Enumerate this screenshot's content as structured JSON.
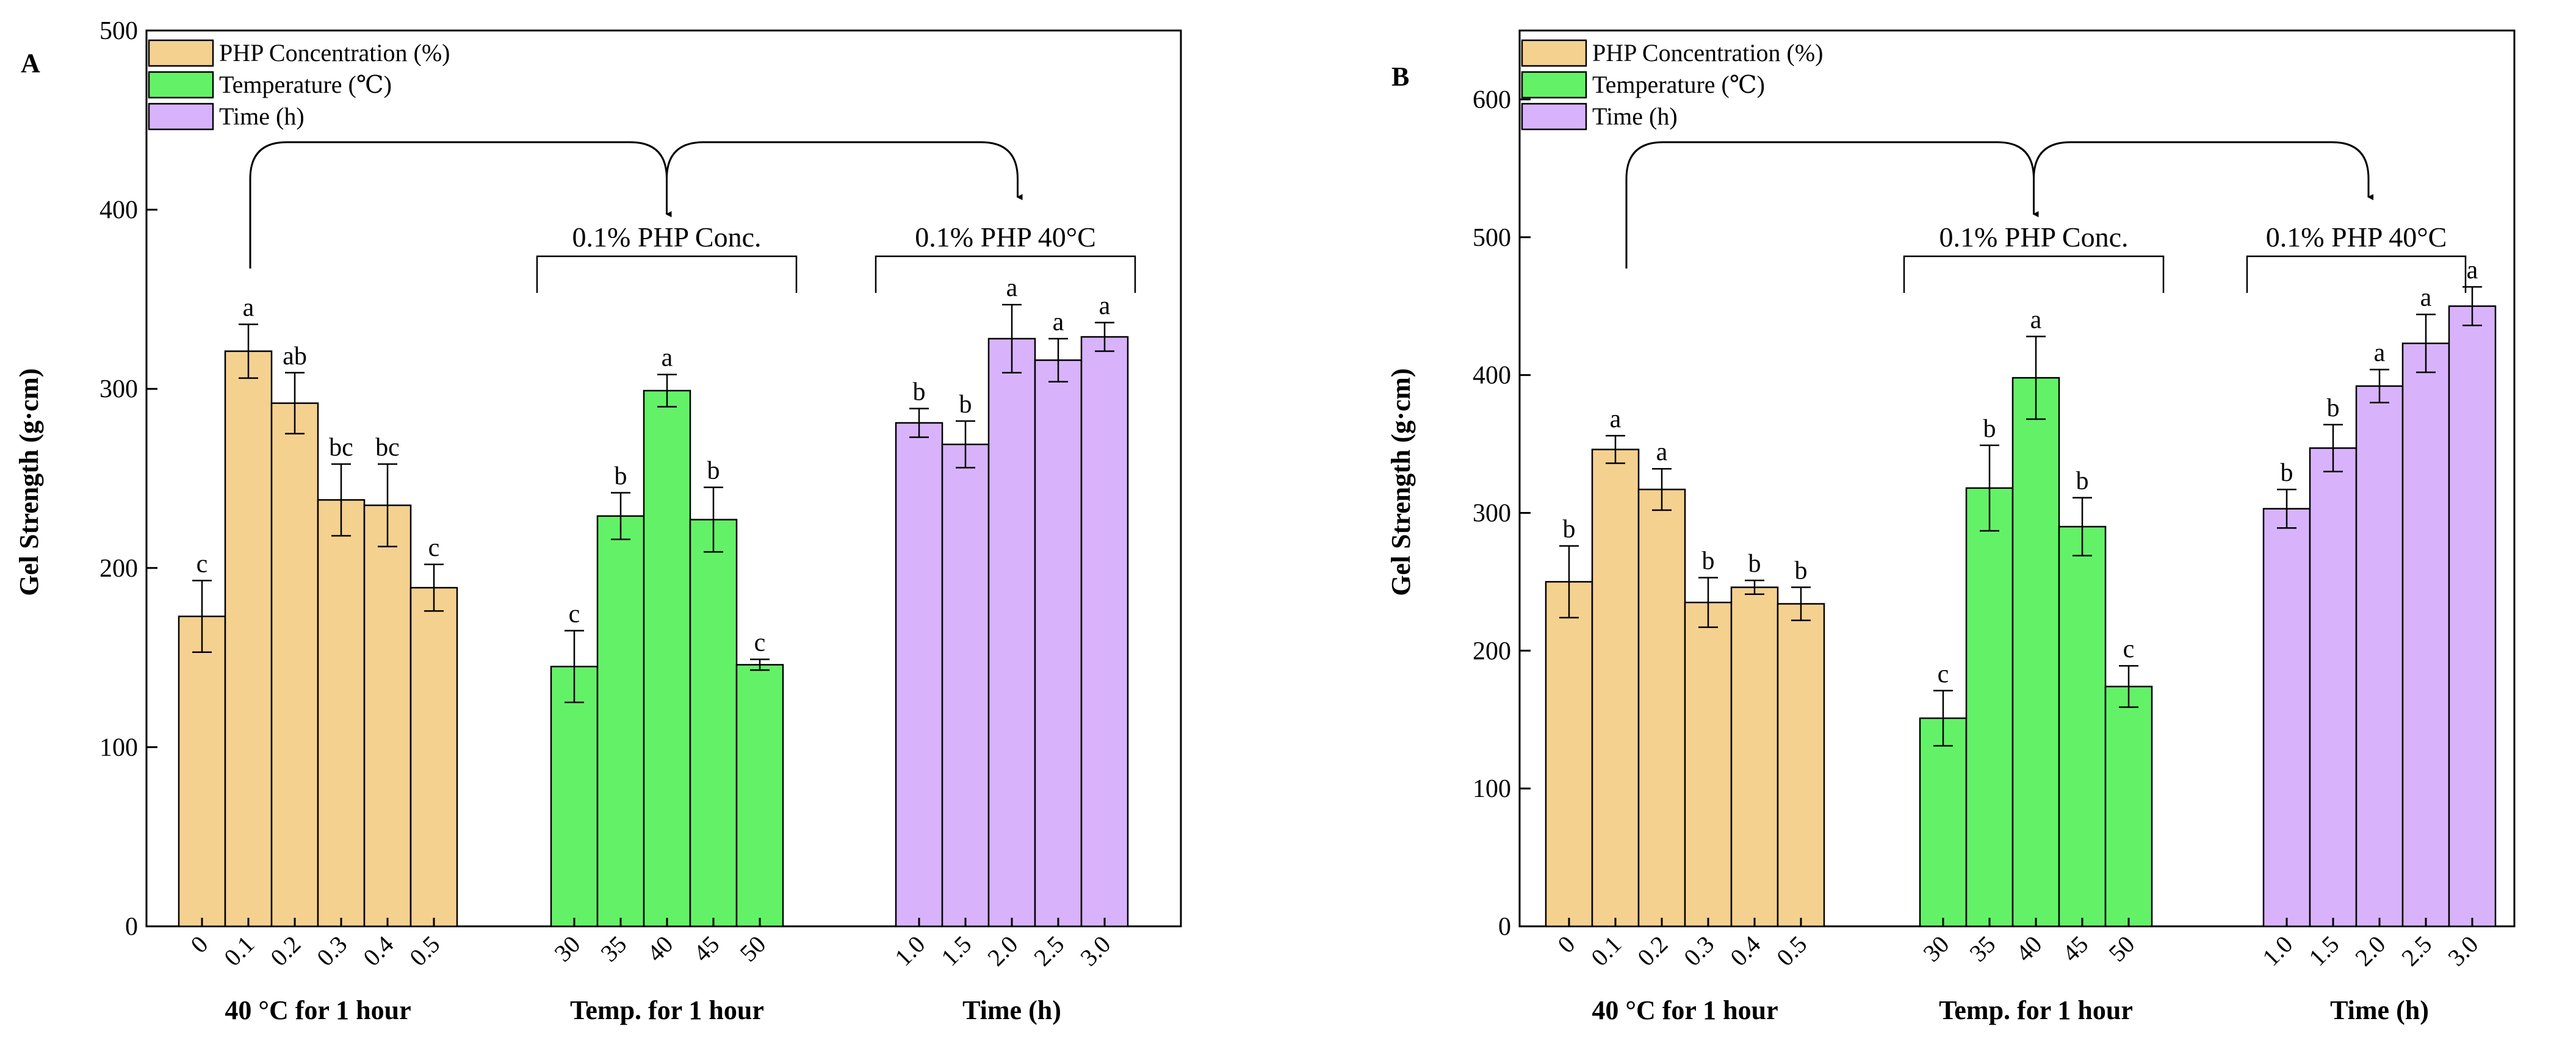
{
  "chart_data": [
    {
      "type": "bar",
      "panel_label": "A",
      "ylabel": "Gel Strength (g·cm)",
      "ylim": [
        0,
        500
      ],
      "yticks": [
        0,
        100,
        200,
        300,
        400,
        500
      ],
      "legend": [
        {
          "label": "PHP Concentration (%)",
          "color": "#f5d190"
        },
        {
          "label": "Temperature (℃)",
          "color": "#63f267"
        },
        {
          "label": "Time (h)",
          "color": "#d8b3fb"
        }
      ],
      "groups": [
        {
          "xlabel": "40 °C for 1 hour",
          "color": "#f5d190",
          "bracket_label": "",
          "categories": [
            "0",
            "0.1",
            "0.2",
            "0.3",
            "0.4",
            "0.5"
          ],
          "values": [
            173,
            321,
            292,
            238,
            235,
            189
          ],
          "errors": [
            20,
            15,
            17,
            20,
            23,
            13
          ],
          "letters": [
            "c",
            "a",
            "ab",
            "bc",
            "bc",
            "c"
          ]
        },
        {
          "xlabel": "Temp. for 1 hour",
          "color": "#63f267",
          "bracket_label": "0.1% PHP Conc.",
          "categories": [
            "30",
            "35",
            "40",
            "45",
            "50"
          ],
          "values": [
            145,
            229,
            299,
            227,
            146
          ],
          "errors": [
            20,
            13,
            9,
            18,
            3
          ],
          "letters": [
            "c",
            "b",
            "a",
            "b",
            "c"
          ]
        },
        {
          "xlabel": "Time (h)",
          "color": "#d8b3fb",
          "bracket_label": "0.1%  PHP 40°C",
          "categories": [
            "1.0",
            "1.5",
            "2.0",
            "2.5",
            "3.0"
          ],
          "values": [
            281,
            269,
            328,
            316,
            329
          ],
          "errors": [
            8,
            13,
            19,
            12,
            8
          ],
          "letters": [
            "b",
            "b",
            "a",
            "a",
            "a"
          ]
        }
      ]
    },
    {
      "type": "bar",
      "panel_label": "B",
      "ylabel": "Gel Strength (g·cm)",
      "ylim": [
        0,
        650
      ],
      "yticks": [
        0,
        100,
        200,
        300,
        400,
        500,
        600
      ],
      "legend": [
        {
          "label": "PHP Concentration (%)",
          "color": "#f5d190"
        },
        {
          "label": "Temperature (℃)",
          "color": "#63f267"
        },
        {
          "label": "Time (h)",
          "color": "#d8b3fb"
        }
      ],
      "groups": [
        {
          "xlabel": "40 °C for 1 hour",
          "color": "#f5d190",
          "bracket_label": "",
          "categories": [
            "0",
            "0.1",
            "0.2",
            "0.3",
            "0.4",
            "0.5"
          ],
          "values": [
            250,
            346,
            317,
            235,
            246,
            234
          ],
          "errors": [
            26,
            10,
            15,
            18,
            5,
            12
          ],
          "letters": [
            "b",
            "a",
            "a",
            "b",
            "b",
            "b"
          ]
        },
        {
          "xlabel": "Temp. for 1 hour",
          "color": "#63f267",
          "bracket_label": "0.1% PHP Conc.",
          "categories": [
            "30",
            "35",
            "40",
            "45",
            "50"
          ],
          "values": [
            151,
            318,
            398,
            290,
            174
          ],
          "errors": [
            20,
            31,
            30,
            21,
            15
          ],
          "letters": [
            "c",
            "b",
            "a",
            "b",
            "c"
          ]
        },
        {
          "xlabel": "Time (h)",
          "color": "#d8b3fb",
          "bracket_label": "0.1%  PHP 40°C",
          "categories": [
            "1.0",
            "1.5",
            "2.0",
            "2.5",
            "3.0"
          ],
          "values": [
            303,
            347,
            392,
            423,
            450
          ],
          "errors": [
            14,
            17,
            12,
            21,
            14
          ],
          "letters": [
            "b",
            "b",
            "a",
            "a",
            "a"
          ]
        }
      ]
    }
  ]
}
